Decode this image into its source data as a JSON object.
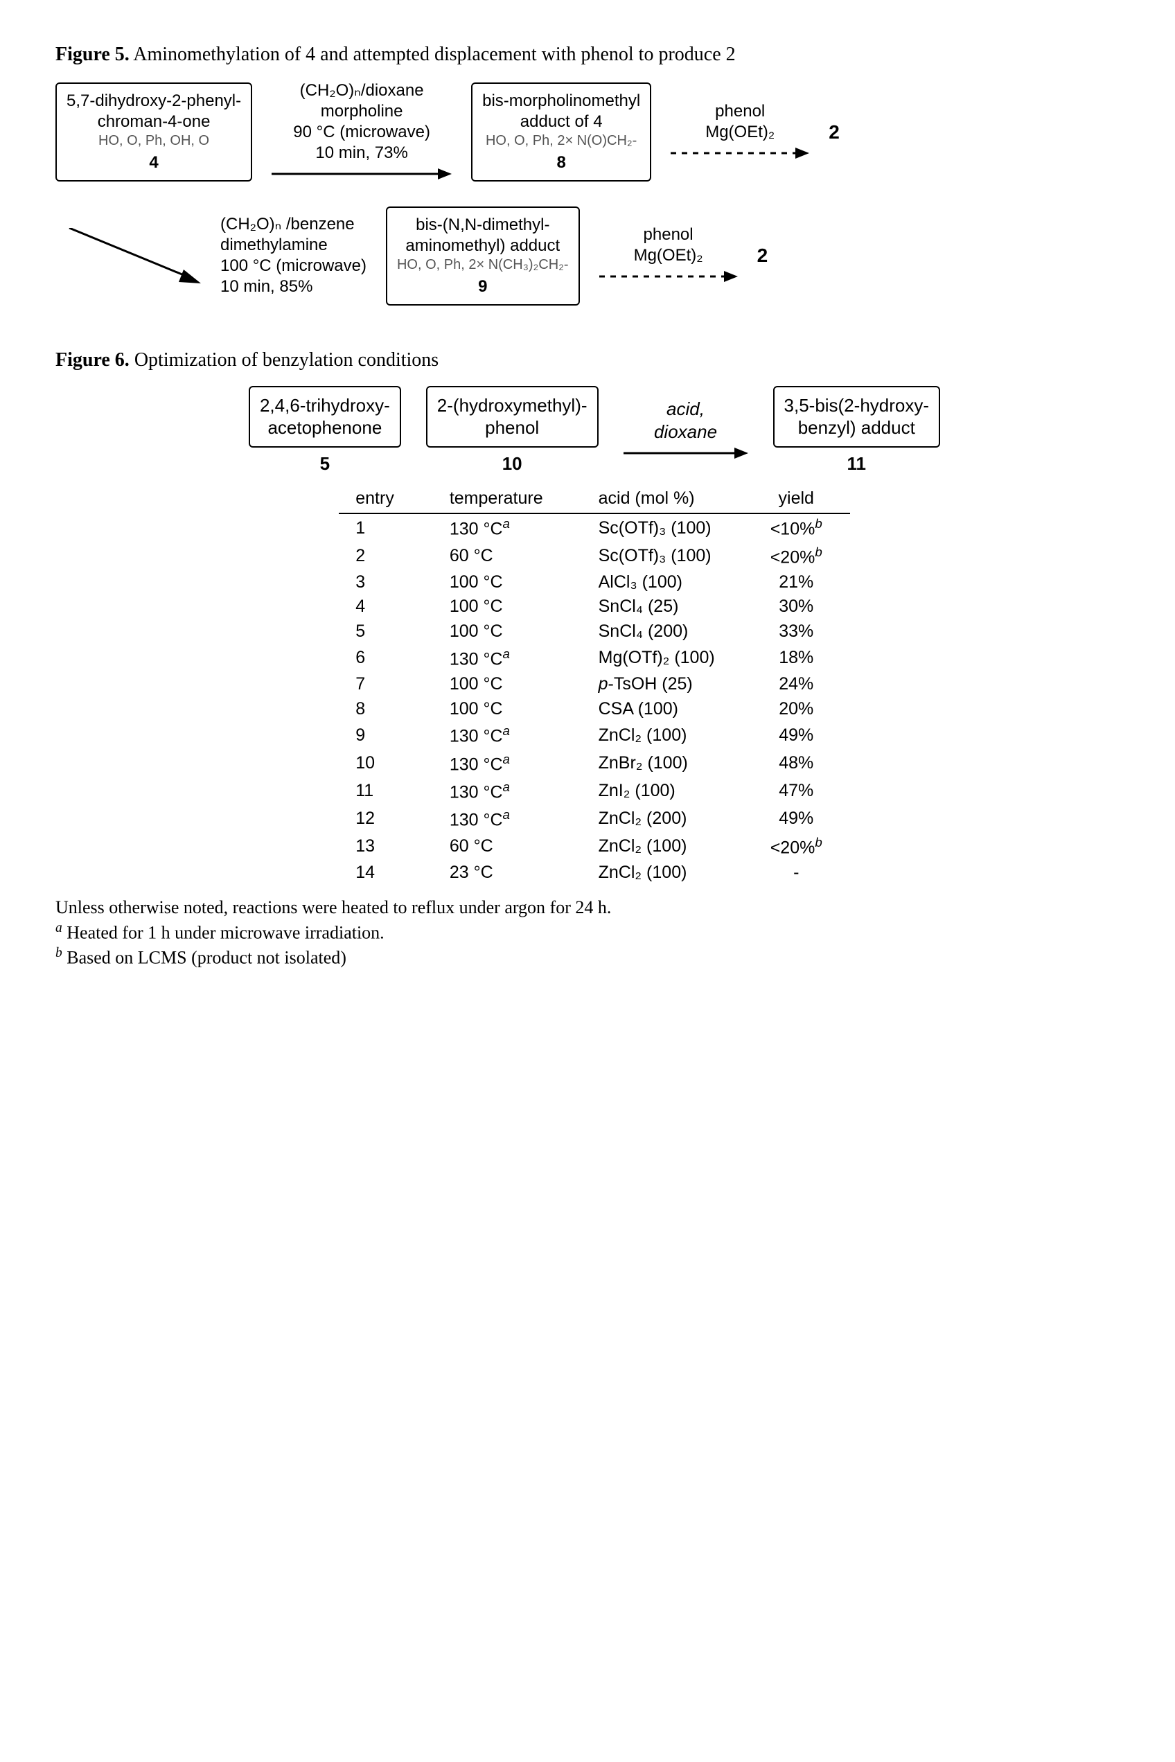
{
  "figure5": {
    "label": "Figure 5.",
    "caption": "Aminomethylation of 4 and attempted displacement with phenol to produce 2",
    "start_mol": {
      "desc": "5,7-dihydroxy-2-phenyl-\nchroman-4-one",
      "groups": "HO, O, Ph, OH, O",
      "num": "4"
    },
    "top": {
      "cond_l1": "(CH₂O)ₙ/dioxane",
      "cond_l2": "morpholine",
      "cond_l3": "90 °C (microwave)",
      "cond_l4": "10 min, 73%",
      "product": {
        "desc": "bis-morpholinomethyl\nadduct of 4",
        "groups": "HO, O, Ph, 2× N(O)CH₂-",
        "num": "8"
      },
      "disp": {
        "reagent_l1": "phenol",
        "reagent_l2": "Mg(OEt)₂"
      }
    },
    "bottom": {
      "cond_l1": "(CH₂O)ₙ /benzene",
      "cond_l2": "dimethylamine",
      "cond_l3": "100 °C (microwave)",
      "cond_l4": "10 min, 85%",
      "product": {
        "desc": "bis-(N,N-dimethyl-\naminomethyl) adduct",
        "groups": "HO, O, Ph, 2× N(CH₃)₂CH₂-",
        "num": "9"
      },
      "disp": {
        "reagent_l1": "phenol",
        "reagent_l2": "Mg(OEt)₂"
      }
    },
    "target": "2"
  },
  "figure6": {
    "label": "Figure 6.",
    "caption": "Optimization of benzylation conditions",
    "react_a": {
      "desc": "2,4,6-trihydroxy-\nacetophenone",
      "num": "5"
    },
    "react_b": {
      "desc": "2-(hydroxymethyl)-\nphenol",
      "num": "10"
    },
    "arrow": {
      "l1": "acid,",
      "l2": "dioxane"
    },
    "product": {
      "desc": "3,5-bis(2-hydroxy-\nbenzyl) adduct",
      "num": "11"
    },
    "table": {
      "headers": [
        "entry",
        "temperature",
        "acid (mol %)",
        "yield"
      ],
      "rows": [
        {
          "entry": "1",
          "temp": "130 °C",
          "temp_note": "a",
          "acid": "Sc(OTf)₃ (100)",
          "yield": "<10%",
          "yield_note": "b"
        },
        {
          "entry": "2",
          "temp": "60 °C",
          "temp_note": "",
          "acid": "Sc(OTf)₃ (100)",
          "yield": "<20%",
          "yield_note": "b"
        },
        {
          "entry": "3",
          "temp": "100 °C",
          "temp_note": "",
          "acid": "AlCl₃ (100)",
          "yield": "21%",
          "yield_note": ""
        },
        {
          "entry": "4",
          "temp": "100 °C",
          "temp_note": "",
          "acid": "SnCl₄ (25)",
          "yield": "30%",
          "yield_note": ""
        },
        {
          "entry": "5",
          "temp": "100 °C",
          "temp_note": "",
          "acid": "SnCl₄ (200)",
          "yield": "33%",
          "yield_note": ""
        },
        {
          "entry": "6",
          "temp": "130 °C",
          "temp_note": "a",
          "acid": "Mg(OTf)₂ (100)",
          "yield": "18%",
          "yield_note": ""
        },
        {
          "entry": "7",
          "temp": "100 °C",
          "temp_note": "",
          "acid": "p-TsOH (25)",
          "yield": "24%",
          "yield_note": "",
          "acid_prefix_ital": "p"
        },
        {
          "entry": "8",
          "temp": "100 °C",
          "temp_note": "",
          "acid": "CSA (100)",
          "yield": "20%",
          "yield_note": ""
        },
        {
          "entry": "9",
          "temp": "130 °C",
          "temp_note": "a",
          "acid": "ZnCl₂ (100)",
          "yield": "49%",
          "yield_note": ""
        },
        {
          "entry": "10",
          "temp": "130 °C",
          "temp_note": "a",
          "acid": "ZnBr₂ (100)",
          "yield": "48%",
          "yield_note": ""
        },
        {
          "entry": "11",
          "temp": "130 °C",
          "temp_note": "a",
          "acid": "ZnI₂ (100)",
          "yield": "47%",
          "yield_note": ""
        },
        {
          "entry": "12",
          "temp": "130 °C",
          "temp_note": "a",
          "acid": "ZnCl₂ (200)",
          "yield": "49%",
          "yield_note": ""
        },
        {
          "entry": "13",
          "temp": "60 °C",
          "temp_note": "",
          "acid": "ZnCl₂ (100)",
          "yield": "<20%",
          "yield_note": "b"
        },
        {
          "entry": "14",
          "temp": "23 °C",
          "temp_note": "",
          "acid": "ZnCl₂ (100)",
          "yield": "-",
          "yield_note": ""
        }
      ]
    },
    "footnote_main": "Unless otherwise noted, reactions were heated to reflux under argon for 24 h.",
    "footnote_a": "Heated for 1 h under microwave irradiation.",
    "footnote_b": "Based on LCMS (product not isolated)"
  },
  "colors": {
    "text": "#000000",
    "bg": "#ffffff",
    "rule": "#000000"
  }
}
